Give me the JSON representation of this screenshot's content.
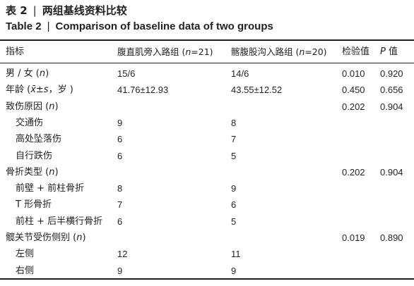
{
  "caption": {
    "cn_label": "表 2",
    "separator": "|",
    "cn_title": "两组基线资料比较",
    "en_label": "Table 2",
    "en_title": "Comparison of baseline data of two groups"
  },
  "header": {
    "col0": "指标",
    "col1_prefix": "腹直肌旁入路组 (",
    "col1_n": "n",
    "col1_suffix": "=21)",
    "col2_prefix": "髂腹股沟入路组 (",
    "col2_n": "n",
    "col2_suffix": "=20)",
    "col3": "检验值",
    "col4_p": "P",
    "col4_suffix": " 值"
  },
  "rows": [
    {
      "label": "男 / 女 (",
      "label_it": "n",
      "label_end": ")",
      "sub": false,
      "g1": "15/6",
      "g2": "14/6",
      "test": "0.010",
      "p": "0.920"
    },
    {
      "label": "年龄 (",
      "label_it": "x̄±s",
      "label_end": "，岁 )",
      "sub": false,
      "g1": "41.76±12.93",
      "g2": "43.55±12.52",
      "test": "0.450",
      "p": "0.656"
    },
    {
      "label": "致伤原因 (",
      "label_it": "n",
      "label_end": ")",
      "sub": false,
      "g1": "",
      "g2": "",
      "test": "0.202",
      "p": "0.904"
    },
    {
      "label": "交通伤",
      "label_it": "",
      "label_end": "",
      "sub": true,
      "g1": "9",
      "g2": "8",
      "test": "",
      "p": ""
    },
    {
      "label": "高处坠落伤",
      "label_it": "",
      "label_end": "",
      "sub": true,
      "g1": "6",
      "g2": "7",
      "test": "",
      "p": ""
    },
    {
      "label": "自行跌伤",
      "label_it": "",
      "label_end": "",
      "sub": true,
      "g1": "6",
      "g2": "5",
      "test": "",
      "p": ""
    },
    {
      "label": "骨折类型 (",
      "label_it": "n",
      "label_end": ")",
      "sub": false,
      "g1": "",
      "g2": "",
      "test": "0.202",
      "p": "0.904"
    },
    {
      "label": "前壁 + 前柱骨折",
      "label_it": "",
      "label_end": "",
      "sub": true,
      "g1": "8",
      "g2": "9",
      "test": "",
      "p": ""
    },
    {
      "label": "T 形骨折",
      "label_it": "",
      "label_end": "",
      "sub": true,
      "g1": "7",
      "g2": "6",
      "test": "",
      "p": ""
    },
    {
      "label": "前柱 + 后半横行骨折",
      "label_it": "",
      "label_end": "",
      "sub": true,
      "g1": "6",
      "g2": "5",
      "test": "",
      "p": ""
    },
    {
      "label": "髋关节受伤侧别 (",
      "label_it": "n",
      "label_end": ")",
      "sub": false,
      "g1": "",
      "g2": "",
      "test": "0.019",
      "p": "0.890"
    },
    {
      "label": "左侧",
      "label_it": "",
      "label_end": "",
      "sub": true,
      "g1": "12",
      "g2": "11",
      "test": "",
      "p": ""
    },
    {
      "label": "右侧",
      "label_it": "",
      "label_end": "",
      "sub": true,
      "g1": "9",
      "g2": "9",
      "test": "",
      "p": ""
    }
  ]
}
